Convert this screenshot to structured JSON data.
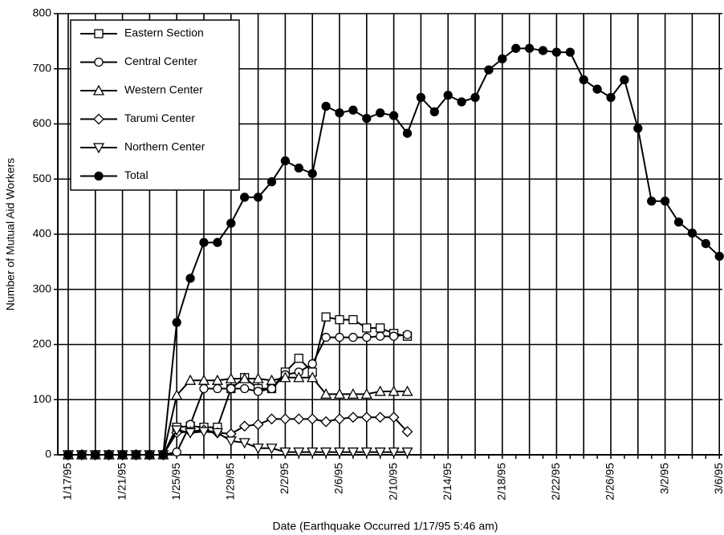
{
  "chart_data": {
    "type": "line",
    "xlabel": "Date (Earthquake Occurred 1/17/95 5:46 am)",
    "ylabel": "Number of Mutual Aid Workers",
    "categories": [
      "1/17/95",
      null,
      null,
      null,
      "1/21/95",
      null,
      null,
      null,
      "1/25/95",
      null,
      null,
      null,
      "1/29/95",
      null,
      null,
      null,
      "2/2/95",
      null,
      null,
      null,
      "2/6/95",
      null,
      null,
      null,
      "2/10/95",
      null,
      null,
      null,
      "2/14/95",
      null,
      null,
      null,
      "2/18/95",
      null,
      null,
      null,
      "2/22/95",
      null,
      null,
      null,
      "2/26/95",
      null,
      null,
      null,
      "3/2/95",
      null,
      null,
      null,
      "3/6/95"
    ],
    "ylim": [
      0,
      800
    ],
    "yticks": [
      0,
      100,
      200,
      300,
      400,
      500,
      600,
      700,
      800
    ],
    "grid": true,
    "legend": "upper left",
    "series": [
      {
        "name": "Eastern Section",
        "color": "#000000",
        "marker": "square",
        "values": [
          0,
          0,
          0,
          0,
          0,
          0,
          0,
          0,
          50,
          52,
          50,
          50,
          120,
          140,
          120,
          120,
          150,
          175,
          150,
          250,
          245,
          245,
          230,
          230,
          220,
          215,
          null,
          null,
          null,
          null,
          null,
          null,
          null,
          null,
          null,
          null,
          null,
          null,
          null,
          null,
          null,
          null,
          null,
          null,
          null,
          null,
          null,
          null,
          null
        ]
      },
      {
        "name": "Central Center",
        "color": "#000000",
        "marker": "circle",
        "values": [
          0,
          0,
          0,
          0,
          0,
          0,
          0,
          0,
          5,
          55,
          120,
          120,
          120,
          120,
          115,
          120,
          145,
          150,
          165,
          213,
          213,
          213,
          213,
          215,
          215,
          218,
          null,
          null,
          null,
          null,
          null,
          null,
          null,
          null,
          null,
          null,
          null,
          null,
          null,
          null,
          null,
          null,
          null,
          null,
          null,
          null,
          null,
          null,
          null
        ]
      },
      {
        "name": "Western Center",
        "color": "#000000",
        "marker": "triangle",
        "values": [
          0,
          0,
          0,
          0,
          0,
          0,
          0,
          0,
          108,
          135,
          135,
          135,
          138,
          138,
          138,
          135,
          140,
          140,
          140,
          110,
          110,
          110,
          110,
          115,
          115,
          115,
          null,
          null,
          null,
          null,
          null,
          null,
          null,
          null,
          null,
          null,
          null,
          null,
          null,
          null,
          null,
          null,
          null,
          null,
          null,
          null,
          null,
          null,
          null
        ]
      },
      {
        "name": "Tarumi Center",
        "color": "#000000",
        "marker": "diamond",
        "values": [
          0,
          0,
          0,
          0,
          0,
          0,
          0,
          0,
          40,
          42,
          45,
          40,
          38,
          52,
          55,
          65,
          65,
          65,
          65,
          60,
          65,
          68,
          68,
          68,
          68,
          42,
          null,
          null,
          null,
          null,
          null,
          null,
          null,
          null,
          null,
          null,
          null,
          null,
          null,
          null,
          null,
          null,
          null,
          null,
          null,
          null,
          null,
          null,
          null
        ]
      },
      {
        "name": "Northern Center",
        "color": "#000000",
        "marker": "triangle-down",
        "values": [
          0,
          0,
          0,
          0,
          0,
          0,
          0,
          0,
          45,
          40,
          42,
          40,
          25,
          22,
          12,
          12,
          5,
          5,
          5,
          5,
          5,
          5,
          5,
          5,
          5,
          5,
          null,
          null,
          null,
          null,
          null,
          null,
          null,
          null,
          null,
          null,
          null,
          null,
          null,
          null,
          null,
          null,
          null,
          null,
          null,
          null,
          null,
          null,
          null
        ]
      },
      {
        "name": "Total",
        "color": "#000000",
        "marker": "filled-circle",
        "values": [
          0,
          0,
          0,
          0,
          0,
          0,
          0,
          0,
          240,
          320,
          385,
          385,
          420,
          467,
          467,
          495,
          533,
          520,
          510,
          632,
          620,
          625,
          610,
          620,
          615,
          583,
          648,
          622,
          652,
          640,
          648,
          698,
          718,
          737,
          737,
          733,
          730,
          730,
          680,
          663,
          648,
          680,
          592,
          460,
          460,
          422,
          402,
          383,
          360
        ]
      }
    ]
  }
}
